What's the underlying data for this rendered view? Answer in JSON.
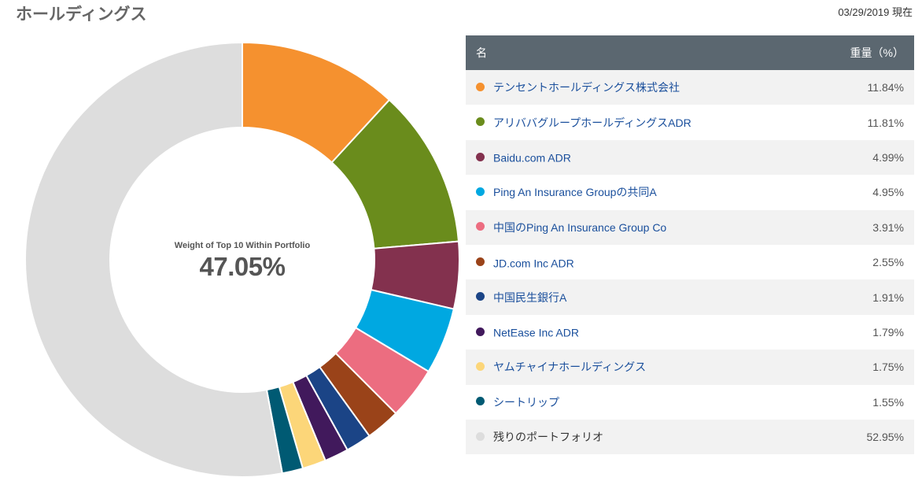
{
  "header": {
    "title": "ホールディングス",
    "as_of": "03/29/2019 現在"
  },
  "table": {
    "col_name": "名",
    "col_weight": "重量（%）"
  },
  "chart_data": {
    "type": "pie",
    "center_label": "Weight of Top 10 Within Portfolio",
    "center_value": "47.05%",
    "categories": [
      "テンセントホールディングス株式会社",
      "アリババグループホールディングスADR",
      "Baidu.com ADR",
      "Ping An Insurance Groupの共同A",
      "中国のPing An Insurance Group Co",
      "JD.com Inc ADR",
      "中国民生銀行A",
      "NetEase Inc ADR",
      "ヤムチャイナホールディングス",
      "シートリップ",
      "残りのポートフォリオ"
    ],
    "values": [
      11.84,
      11.81,
      4.99,
      4.95,
      3.91,
      2.55,
      1.91,
      1.79,
      1.75,
      1.55,
      52.95
    ],
    "labels": [
      "11.84%",
      "11.81%",
      "4.99%",
      "4.95%",
      "3.91%",
      "2.55%",
      "1.91%",
      "1.79%",
      "1.75%",
      "1.55%",
      "52.95%"
    ],
    "colors": [
      "#f5912f",
      "#6a8c1c",
      "#83314e",
      "#00a8e1",
      "#ec6d80",
      "#9a4319",
      "#1b4486",
      "#41195c",
      "#fcd679",
      "#005a73",
      "#dddddd"
    ]
  }
}
